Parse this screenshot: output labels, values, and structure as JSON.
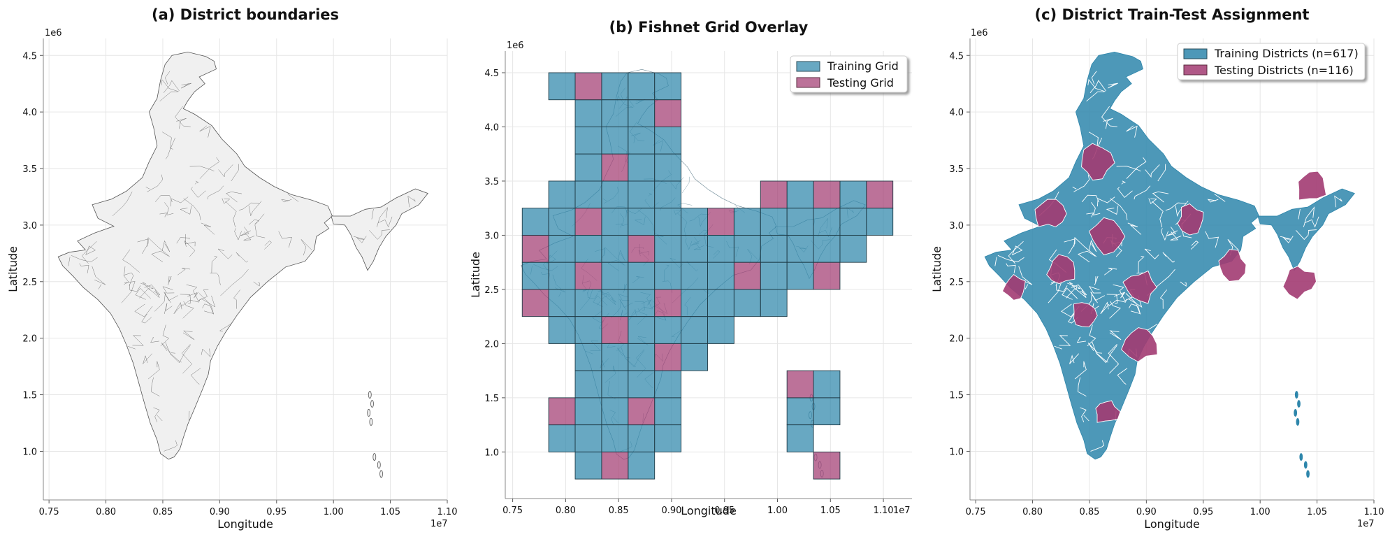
{
  "colors": {
    "train": "#2e86ab",
    "test": "#a23b72",
    "map_fill": "#f0f0f0",
    "map_edge": "#555555",
    "grid": "#e6e6e6",
    "axis": "#888888"
  },
  "chart_data": [
    {
      "type": "map",
      "title": "(a) District boundaries",
      "xlabel": "Longitude",
      "ylabel": "Latitude",
      "x_offset_label": "1e7",
      "y_offset_label": "1e6",
      "xlim": [
        0.745,
        1.1
      ],
      "ylim": [
        0.57,
        4.65
      ],
      "xticks": [
        0.75,
        0.8,
        0.85,
        0.9,
        0.95,
        1.0,
        1.05,
        1.1
      ],
      "xtick_labels": [
        "0.75",
        "0.80",
        "0.85",
        "0.90",
        "0.95",
        "1.00",
        "1.05",
        "1.10"
      ],
      "yticks": [
        1.0,
        1.5,
        2.0,
        2.5,
        3.0,
        3.5,
        4.0,
        4.5
      ],
      "ytick_labels": [
        "1.0",
        "1.5",
        "2.0",
        "2.5",
        "3.0",
        "3.5",
        "4.0",
        "4.5"
      ],
      "grid": true
    },
    {
      "type": "map",
      "title": "(b) Fishnet Grid Overlay",
      "xlabel": "Longitude",
      "ylabel": "Latitude",
      "x_offset_label": "1e7",
      "y_offset_label": "1e6",
      "xlim": [
        0.743,
        1.127
      ],
      "ylim": [
        0.57,
        4.7
      ],
      "xticks": [
        0.75,
        0.8,
        0.85,
        0.9,
        0.95,
        1.0,
        1.05,
        1.1
      ],
      "xtick_labels": [
        "0.75",
        "0.80",
        "0.85",
        "0.90",
        "0.95",
        "1.00",
        "1.05",
        "1.10"
      ],
      "yticks": [
        1.0,
        1.5,
        2.0,
        2.5,
        3.0,
        3.5,
        4.0,
        4.5
      ],
      "ytick_labels": [
        "1.0",
        "1.5",
        "2.0",
        "2.5",
        "3.0",
        "3.5",
        "4.0",
        "4.5"
      ],
      "grid": true,
      "legend": {
        "placement": "upper right",
        "entries": [
          "Training Grid",
          "Testing Grid"
        ]
      },
      "cell_size": 0.25,
      "training_cells": [
        [
          0.784,
          4.25
        ],
        [
          0.834,
          4.25
        ],
        [
          0.859,
          4.25
        ],
        [
          0.884,
          4.25
        ],
        [
          0.809,
          4.0
        ],
        [
          0.834,
          4.0
        ],
        [
          0.859,
          4.0
        ],
        [
          0.809,
          3.75
        ],
        [
          0.834,
          3.75
        ],
        [
          0.859,
          3.75
        ],
        [
          0.884,
          3.75
        ],
        [
          0.809,
          3.5
        ],
        [
          0.859,
          3.5
        ],
        [
          0.884,
          3.5
        ],
        [
          0.784,
          3.25
        ],
        [
          0.809,
          3.25
        ],
        [
          0.834,
          3.25
        ],
        [
          0.859,
          3.25
        ],
        [
          0.884,
          3.25
        ],
        [
          1.009,
          3.25
        ],
        [
          1.059,
          3.25
        ],
        [
          0.759,
          3.0
        ],
        [
          0.784,
          3.0
        ],
        [
          0.834,
          3.0
        ],
        [
          0.859,
          3.0
        ],
        [
          0.884,
          3.0
        ],
        [
          0.909,
          3.0
        ],
        [
          0.959,
          3.0
        ],
        [
          0.984,
          3.0
        ],
        [
          1.009,
          3.0
        ],
        [
          1.034,
          3.0
        ],
        [
          1.059,
          3.0
        ],
        [
          1.084,
          3.0
        ],
        [
          0.784,
          2.75
        ],
        [
          0.809,
          2.75
        ],
        [
          0.834,
          2.75
        ],
        [
          0.884,
          2.75
        ],
        [
          0.909,
          2.75
        ],
        [
          0.934,
          2.75
        ],
        [
          0.959,
          2.75
        ],
        [
          0.984,
          2.75
        ],
        [
          1.009,
          2.75
        ],
        [
          1.034,
          2.75
        ],
        [
          1.059,
          2.75
        ],
        [
          0.759,
          2.5
        ],
        [
          0.784,
          2.5
        ],
        [
          0.834,
          2.5
        ],
        [
          0.859,
          2.5
        ],
        [
          0.884,
          2.5
        ],
        [
          0.909,
          2.5
        ],
        [
          0.934,
          2.5
        ],
        [
          0.984,
          2.5
        ],
        [
          1.009,
          2.5
        ],
        [
          0.784,
          2.25
        ],
        [
          0.809,
          2.25
        ],
        [
          0.834,
          2.25
        ],
        [
          0.859,
          2.25
        ],
        [
          0.909,
          2.25
        ],
        [
          0.934,
          2.25
        ],
        [
          0.959,
          2.25
        ],
        [
          0.984,
          2.25
        ],
        [
          0.784,
          2.0
        ],
        [
          0.809,
          2.0
        ],
        [
          0.859,
          2.0
        ],
        [
          0.884,
          2.0
        ],
        [
          0.909,
          2.0
        ],
        [
          0.934,
          2.0
        ],
        [
          0.809,
          1.75
        ],
        [
          0.834,
          1.75
        ],
        [
          0.859,
          1.75
        ],
        [
          0.909,
          1.75
        ],
        [
          0.809,
          1.5
        ],
        [
          0.834,
          1.5
        ],
        [
          0.859,
          1.5
        ],
        [
          0.884,
          1.5
        ],
        [
          1.034,
          1.5
        ],
        [
          0.809,
          1.25
        ],
        [
          0.834,
          1.25
        ],
        [
          0.884,
          1.25
        ],
        [
          1.009,
          1.25
        ],
        [
          1.034,
          1.25
        ],
        [
          0.784,
          1.0
        ],
        [
          0.809,
          1.0
        ],
        [
          0.834,
          1.0
        ],
        [
          0.859,
          1.0
        ],
        [
          0.884,
          1.0
        ],
        [
          1.009,
          1.0
        ],
        [
          0.809,
          0.75
        ],
        [
          0.859,
          0.75
        ]
      ],
      "testing_cells": [
        [
          0.809,
          4.25
        ],
        [
          0.884,
          4.0
        ],
        [
          0.834,
          3.5
        ],
        [
          0.984,
          3.25
        ],
        [
          1.034,
          3.25
        ],
        [
          1.084,
          3.25
        ],
        [
          0.809,
          3.0
        ],
        [
          0.934,
          3.0
        ],
        [
          0.759,
          2.75
        ],
        [
          0.859,
          2.75
        ],
        [
          0.809,
          2.5
        ],
        [
          0.959,
          2.5
        ],
        [
          1.034,
          2.5
        ],
        [
          0.759,
          2.25
        ],
        [
          0.884,
          2.25
        ],
        [
          0.834,
          2.0
        ],
        [
          0.884,
          1.75
        ],
        [
          1.009,
          1.5
        ],
        [
          0.784,
          1.25
        ],
        [
          0.859,
          1.25
        ],
        [
          0.834,
          0.75
        ],
        [
          1.034,
          0.75
        ]
      ]
    },
    {
      "type": "map",
      "title": "(c) District Train-Test Assignment",
      "xlabel": "Longitude",
      "ylabel": "Latitude",
      "x_offset_label": "1e7",
      "y_offset_label": "1e6",
      "xlim": [
        0.745,
        1.1
      ],
      "ylim": [
        0.57,
        4.65
      ],
      "xticks": [
        0.75,
        0.8,
        0.85,
        0.9,
        0.95,
        1.0,
        1.05,
        1.1
      ],
      "xtick_labels": [
        "0.75",
        "0.80",
        "0.85",
        "0.90",
        "0.95",
        "1.00",
        "1.05",
        "1.10"
      ],
      "yticks": [
        1.0,
        1.5,
        2.0,
        2.5,
        3.0,
        3.5,
        4.0,
        4.5
      ],
      "ytick_labels": [
        "1.0",
        "1.5",
        "2.0",
        "2.5",
        "3.0",
        "3.5",
        "4.0",
        "4.5"
      ],
      "grid": true,
      "legend": {
        "placement": "upper right",
        "entries": [
          "Training Districts (n=617)",
          "Testing Districts (n=116)"
        ]
      },
      "training_count": 617,
      "testing_count": 116,
      "testing_clusters": [
        [
          0.855,
          3.55
        ],
        [
          0.815,
          3.1
        ],
        [
          0.865,
          2.9
        ],
        [
          0.94,
          3.05
        ],
        [
          0.825,
          2.6
        ],
        [
          0.975,
          2.65
        ],
        [
          0.895,
          2.45
        ],
        [
          0.845,
          2.2
        ],
        [
          0.895,
          1.95
        ],
        [
          0.865,
          1.35
        ],
        [
          1.045,
          3.35
        ],
        [
          1.035,
          2.5
        ],
        [
          0.785,
          2.45
        ]
      ]
    }
  ]
}
